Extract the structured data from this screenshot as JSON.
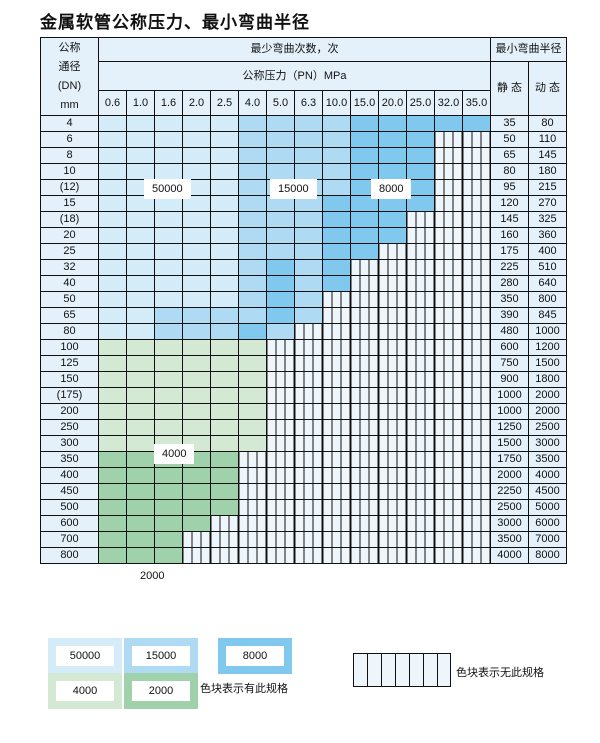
{
  "title": "金属软管公称压力、最小弯曲半径",
  "header": {
    "dn_label_lines": [
      "公称",
      "通径",
      "(DN)",
      "mm"
    ],
    "cycles_label": "最少弯曲次数，次",
    "pressure_label": "公称压力（PN）MPa",
    "radius_label": "最小弯曲半径",
    "static_label": "静 态",
    "dynamic_label": "动 态",
    "pressures": [
      "0.6",
      "1.0",
      "1.6",
      "2.0",
      "2.5",
      "4.0",
      "5.0",
      "6.3",
      "10.0",
      "15.0",
      "20.0",
      "25.0",
      "32.0",
      "35.0"
    ]
  },
  "colors": {
    "L": "#d4ebf8",
    "M": "#aedbf3",
    "D": "#80c8ee",
    "G": "#d3e9d4",
    "H": "#9fd2ab",
    "unavailable": "#eef6fc"
  },
  "rows": [
    {
      "dn": "4",
      "static": "35",
      "dynamic": "80",
      "cells": "LLLLLMMMMDDDDD"
    },
    {
      "dn": "6",
      "static": "50",
      "dynamic": "110",
      "cells": "LLLLLMMMMDDDxx"
    },
    {
      "dn": "8",
      "static": "65",
      "dynamic": "145",
      "cells": "LLLLLMMMMDDDxx"
    },
    {
      "dn": "10",
      "static": "80",
      "dynamic": "180",
      "cells": "LLLLLMMMMDDDxx"
    },
    {
      "dn": "(12)",
      "static": "95",
      "dynamic": "215",
      "cells": "LLLLLMMMMDDDxx"
    },
    {
      "dn": "15",
      "static": "120",
      "dynamic": "270",
      "cells": "LLLLLMMMDDDDxx"
    },
    {
      "dn": "(18)",
      "static": "145",
      "dynamic": "325",
      "cells": "LLLLLMMMDDDxxx"
    },
    {
      "dn": "20",
      "static": "160",
      "dynamic": "360",
      "cells": "LLLLLMMMDDDxxx"
    },
    {
      "dn": "25",
      "static": "175",
      "dynamic": "400",
      "cells": "LLLLLMMMDDxxxx"
    },
    {
      "dn": "32",
      "static": "225",
      "dynamic": "510",
      "cells": "LLLLLMDMDxxxxx"
    },
    {
      "dn": "40",
      "static": "280",
      "dynamic": "640",
      "cells": "LLLLLMDMDxxxxx"
    },
    {
      "dn": "50",
      "static": "350",
      "dynamic": "800",
      "cells": "LLLLLMDMxxxxxx"
    },
    {
      "dn": "65",
      "static": "390",
      "dynamic": "845",
      "cells": "LLMMMMDMxxxxxx"
    },
    {
      "dn": "80",
      "static": "480",
      "dynamic": "1000",
      "cells": "LLMMMDMxxxxxxx"
    },
    {
      "dn": "100",
      "static": "600",
      "dynamic": "1200",
      "cells": "GGGGGGxxxxxxxx"
    },
    {
      "dn": "125",
      "static": "750",
      "dynamic": "1500",
      "cells": "GGGGGGxxxxxxxx"
    },
    {
      "dn": "150",
      "static": "900",
      "dynamic": "1800",
      "cells": "GGGGGGxxxxxxxx"
    },
    {
      "dn": "(175)",
      "static": "1000",
      "dynamic": "2000",
      "cells": "GGGGGGxxxxxxxx"
    },
    {
      "dn": "200",
      "static": "1000",
      "dynamic": "2000",
      "cells": "GGGGGGxxxxxxxx"
    },
    {
      "dn": "250",
      "static": "1250",
      "dynamic": "2500",
      "cells": "GGGGGGxxxxxxxx"
    },
    {
      "dn": "300",
      "static": "1500",
      "dynamic": "3000",
      "cells": "GGGGGGxxxxxxxx"
    },
    {
      "dn": "350",
      "static": "1750",
      "dynamic": "3500",
      "cells": "HHHHHxxxxxxxxx"
    },
    {
      "dn": "400",
      "static": "2000",
      "dynamic": "4000",
      "cells": "HHHHHxxxxxxxxx"
    },
    {
      "dn": "450",
      "static": "2250",
      "dynamic": "4500",
      "cells": "HHHHHxxxxxxxxx"
    },
    {
      "dn": "500",
      "static": "2500",
      "dynamic": "5000",
      "cells": "HHHHHxxxxxxxxx"
    },
    {
      "dn": "600",
      "static": "3000",
      "dynamic": "6000",
      "cells": "HHHHxxxxxxxxxx"
    },
    {
      "dn": "700",
      "static": "3500",
      "dynamic": "7000",
      "cells": "HHHxxxxxxxxxxx"
    },
    {
      "dn": "800",
      "static": "4000",
      "dynamic": "8000",
      "cells": "HHHxxxxxxxxxxx"
    }
  ],
  "region_labels": [
    "50000",
    "15000",
    "8000",
    "4000",
    "2000"
  ],
  "legend": {
    "items": [
      "50000",
      "15000",
      "8000",
      "4000",
      "2000"
    ],
    "available_note": "色块表示有此规格",
    "unavailable_note": "色块表示无此规格"
  }
}
